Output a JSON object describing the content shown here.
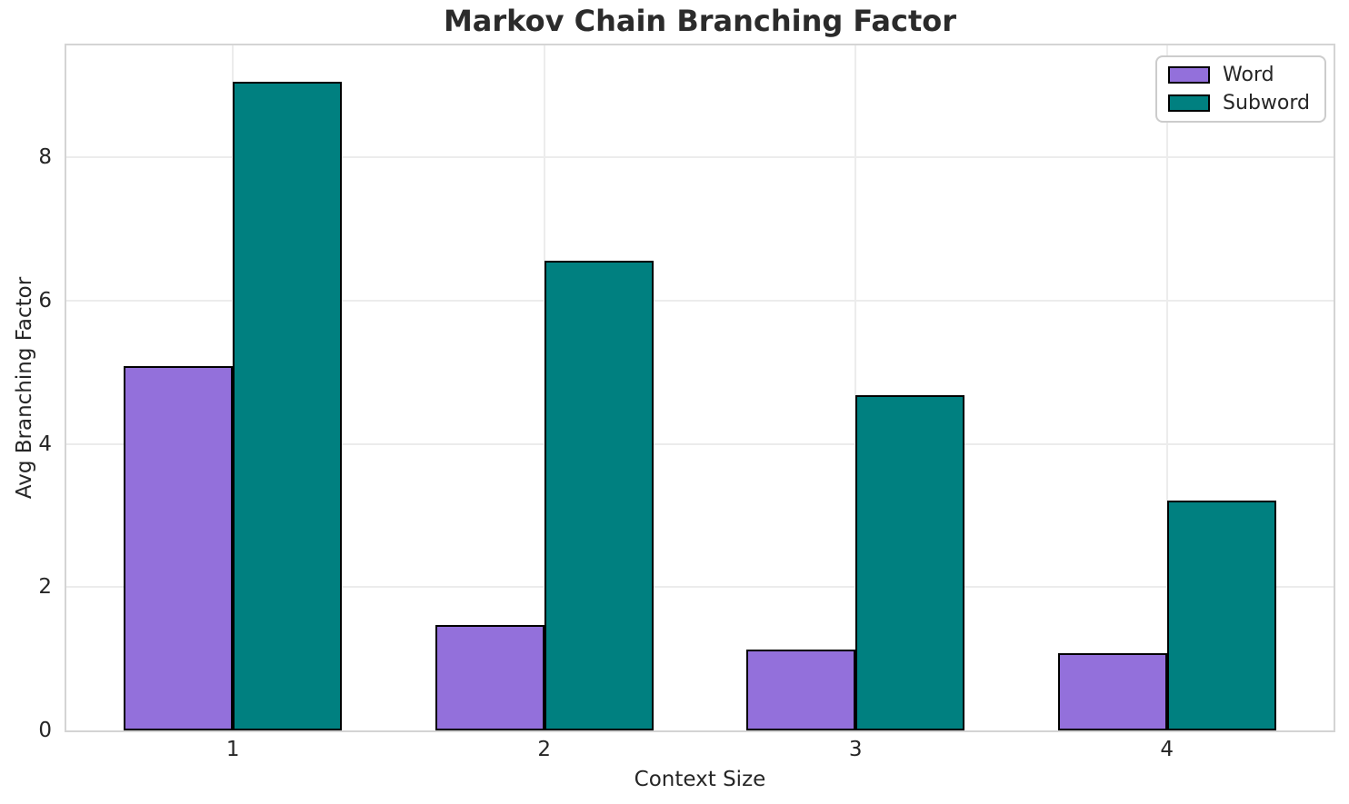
{
  "chart_data": {
    "type": "bar",
    "title": "Markov Chain Branching Factor",
    "xlabel": "Context Size",
    "ylabel": "Avg Branching Factor",
    "categories": [
      1,
      2,
      3,
      4
    ],
    "series": [
      {
        "name": "Word",
        "color": "#9370DB",
        "values": [
          5.08,
          1.47,
          1.13,
          1.08
        ]
      },
      {
        "name": "Subword",
        "color": "#008080",
        "values": [
          9.05,
          6.55,
          4.68,
          3.21
        ]
      }
    ],
    "bar_width": 0.35,
    "xlim": [
      0.465,
      4.535
    ],
    "ylim": [
      0,
      9.56
    ],
    "yticks": [
      0,
      2,
      4,
      6,
      8
    ],
    "grid": "both",
    "legend_position": "upper right",
    "style": {
      "bar_edge_color": "#000000",
      "grid_color": "#ececec",
      "spine_color": "#d4d4d4",
      "text_color": "#262626",
      "background": "#ffffff"
    }
  }
}
